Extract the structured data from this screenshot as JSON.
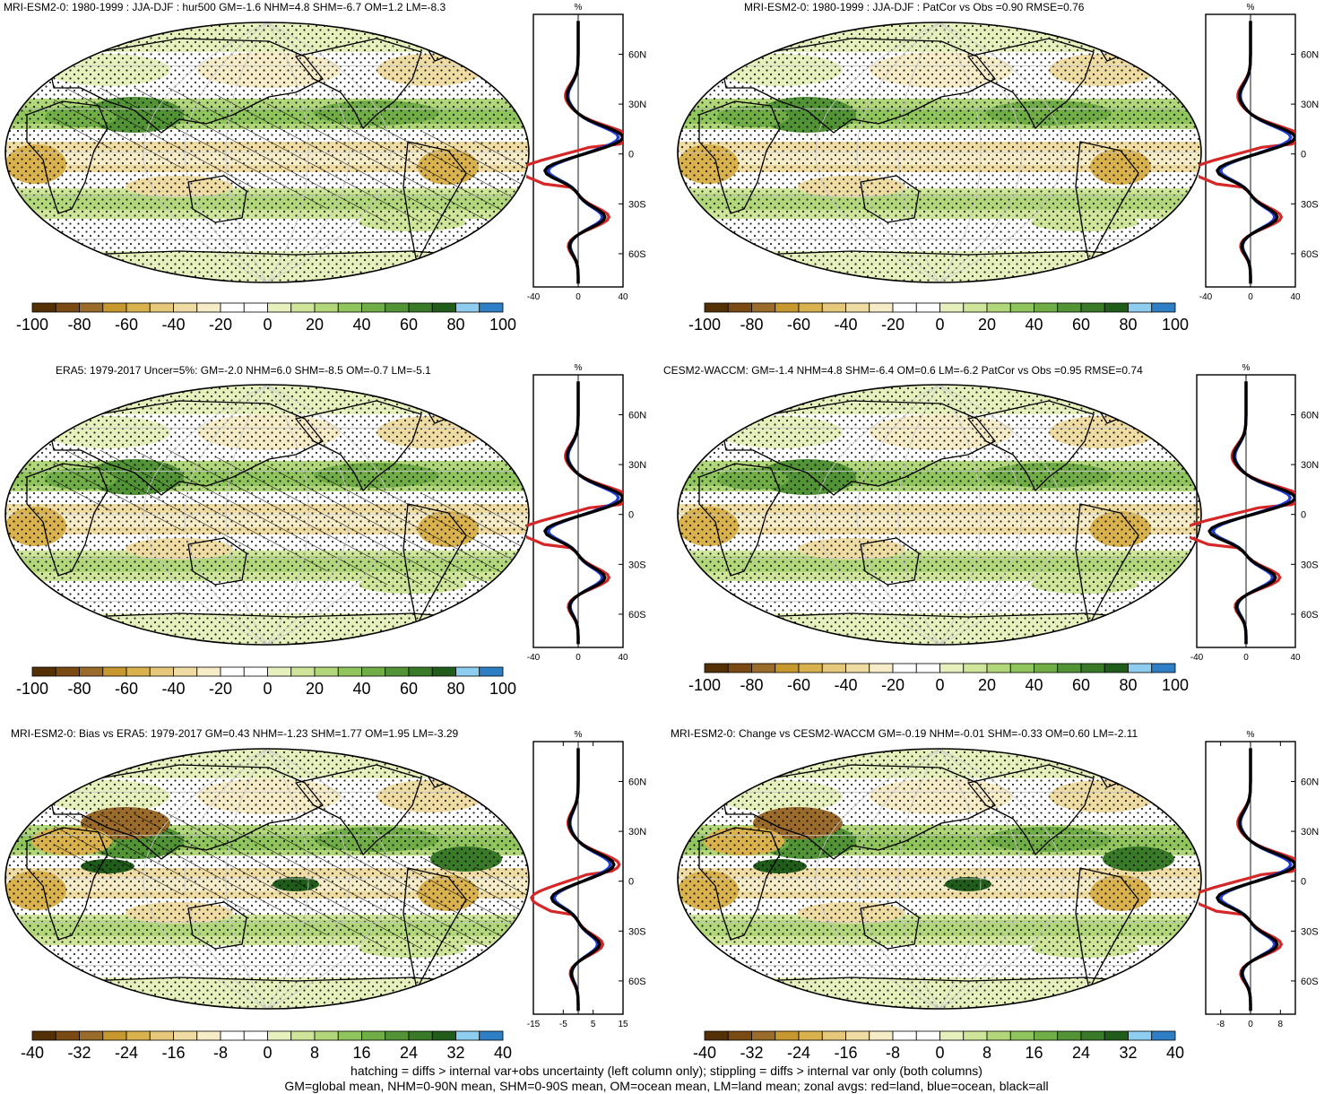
{
  "colors": {
    "fill_palette": [
      "#543005",
      "#7a4a12",
      "#9a6b2a",
      "#c7982e",
      "#d9b24d",
      "#e6c87a",
      "#efdca3",
      "#f6ecc8",
      "#ffffff",
      "#ffffff",
      "#e6f0bd",
      "#cfe59a",
      "#b2d67a",
      "#90c45d",
      "#71ad47",
      "#529336",
      "#387a27",
      "#215d1a",
      "#8fcdf0",
      "#2f7fc7"
    ],
    "land_line": "#d62728",
    "ocean_line": "#1f3fd6",
    "all_line": "#000000"
  },
  "panels": [
    {
      "title": "MRI-ESM2-0: 1980-1999 : JJA-DJF : hur500 GM=-1.6 NHM=4.8 SHM=-6.7 OM=1.2 LM=-8.3",
      "hatched": true,
      "colorbar_labels": [
        "-100",
        "-80",
        "-60",
        "-40",
        "-20",
        "0",
        "20",
        "40",
        "60",
        "80",
        "100"
      ],
      "zonal": {
        "xlabel": "%",
        "xticks": [
          "-40",
          "0",
          "40"
        ],
        "xlim": [
          -40,
          40
        ],
        "yticks": [
          "60N",
          "30N",
          "0",
          "30S",
          "60S"
        ]
      }
    },
    {
      "title": "MRI-ESM2-0: 1980-1999 : JJA-DJF : PatCor vs Obs =0.90 RMSE=0.76",
      "hatched": false,
      "colorbar_labels": [
        "-100",
        "-80",
        "-60",
        "-40",
        "-20",
        "0",
        "20",
        "40",
        "60",
        "80",
        "100"
      ],
      "zonal": {
        "xlabel": "%",
        "xticks": [
          "-40",
          "0",
          "40"
        ],
        "xlim": [
          -40,
          40
        ],
        "yticks": [
          "60N",
          "30N",
          "0",
          "30S",
          "60S"
        ]
      }
    },
    {
      "title": "ERA5: 1979-2017 Uncer=5%: GM=-2.0 NHM=6.0 SHM=-8.5 OM=-0.7 LM=-5.1",
      "hatched": true,
      "colorbar_labels": [
        "-100",
        "-80",
        "-60",
        "-40",
        "-20",
        "0",
        "20",
        "40",
        "60",
        "80",
        "100"
      ],
      "zonal": {
        "xlabel": "%",
        "xticks": [
          "-40",
          "0",
          "40"
        ],
        "xlim": [
          -40,
          40
        ],
        "yticks": [
          "60N",
          "30N",
          "0",
          "30S",
          "60S"
        ]
      }
    },
    {
      "title": "CESM2-WACCM: GM=-1.4 NHM=4.8 SHM=-6.4 OM=0.6 LM=-6.2 PatCor vs Obs =0.95 RMSE=0.74",
      "hatched": false,
      "colorbar_labels": [
        "-100",
        "-80",
        "-60",
        "-40",
        "-20",
        "0",
        "20",
        "40",
        "60",
        "80",
        "100"
      ],
      "zonal": {
        "xlabel": "%",
        "xticks": [
          "-40",
          "0",
          "40"
        ],
        "xlim": [
          -40,
          40
        ],
        "yticks": [
          "60N",
          "30N",
          "0",
          "30S",
          "60S"
        ]
      }
    },
    {
      "title": "MRI-ESM2-0: Bias vs ERA5: 1979-2017 GM=0.43 NHM=-1.23 SHM=1.77 OM=1.95 LM=-3.29",
      "hatched": true,
      "colorbar_labels": [
        "-40",
        "-32",
        "-24",
        "-16",
        "-8",
        "0",
        "8",
        "16",
        "24",
        "32",
        "40"
      ],
      "zonal": {
        "xlabel": "%",
        "xticks": [
          "-15",
          "-5",
          "5",
          "15"
        ],
        "xlim": [
          -15,
          15
        ],
        "yticks": [
          "60N",
          "30N",
          "0",
          "30S",
          "60S"
        ]
      }
    },
    {
      "title": "MRI-ESM2-0: Change vs CESM2-WACCM GM=-0.19 NHM=-0.01 SHM=-0.33 OM=0.60 LM=-2.11",
      "hatched": false,
      "colorbar_labels": [
        "-40",
        "-32",
        "-24",
        "-16",
        "-8",
        "0",
        "8",
        "16",
        "24",
        "32",
        "40"
      ],
      "zonal": {
        "xlabel": "%",
        "xticks": [
          "-8",
          "0",
          "8"
        ],
        "xlim": [
          -12,
          12
        ],
        "yticks": [
          "60N",
          "30N",
          "0",
          "30S",
          "60S"
        ]
      }
    }
  ],
  "footnote": {
    "line1": "hatching = diffs > internal var+obs uncertainty (left column only); stippling = diffs > internal var only (both columns)",
    "line2": "GM=global mean, NHM=0-90N mean, SHM=0-90S mean, OM=ocean mean, LM=land mean; zonal avgs: red=land, blue=ocean, black=all"
  }
}
